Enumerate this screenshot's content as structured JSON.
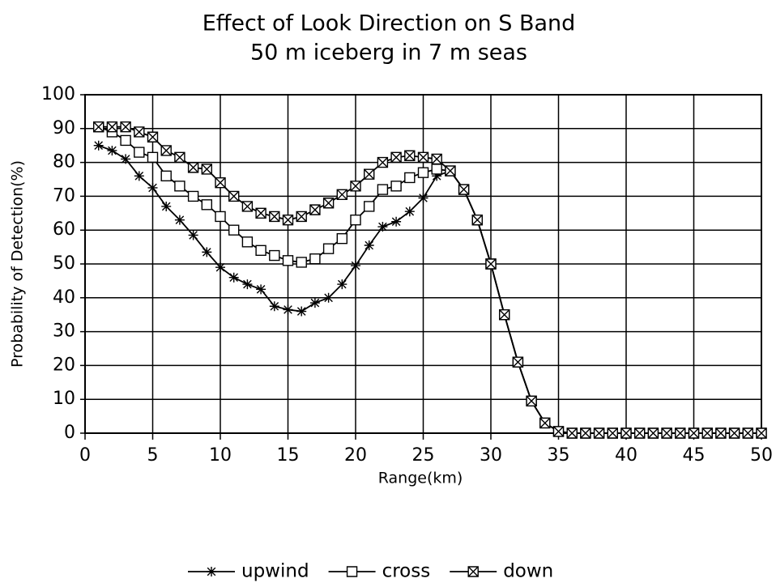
{
  "chart_data": {
    "type": "line",
    "title": "Effect of Look Direction on S Band",
    "subtitle": "50 m iceberg in 7 m seas",
    "x_label": "Range(km)",
    "y_label": "Probability of Detection(%)",
    "x": [
      1,
      2,
      3,
      4,
      5,
      6,
      7,
      8,
      9,
      10,
      11,
      12,
      13,
      14,
      15,
      16,
      17,
      18,
      19,
      20,
      21,
      22,
      23,
      24,
      25,
      26,
      27,
      28,
      29,
      30,
      31,
      32,
      33,
      34,
      35,
      36,
      37,
      38,
      39,
      40,
      41,
      42,
      43,
      44,
      45,
      46,
      47,
      48,
      49,
      50
    ],
    "series": [
      {
        "name": "upwind",
        "color": "#000",
        "marker": "asterisk",
        "values": [
          85,
          83.5,
          81,
          76,
          72.5,
          67,
          63,
          58.5,
          53.5,
          49,
          46,
          44,
          42.5,
          37.5,
          36.5,
          36,
          38.5,
          40,
          44,
          49.5,
          55.5,
          61,
          62.5,
          65.5,
          69.5,
          76,
          77.5,
          72,
          63,
          50,
          35,
          21,
          9.5,
          3,
          0.5,
          0,
          0,
          0,
          0,
          0,
          0,
          0,
          0,
          0,
          0,
          0,
          0,
          0,
          0,
          0
        ]
      },
      {
        "name": "cross",
        "color": "#000",
        "marker": "square",
        "values": [
          90.5,
          89,
          86.5,
          83,
          81.5,
          76,
          73,
          70,
          67.5,
          64,
          60,
          56.5,
          54,
          52.5,
          51,
          50.5,
          51.5,
          54.5,
          57.5,
          63,
          67,
          72,
          73,
          75.5,
          77,
          78,
          77.5,
          72,
          63,
          50,
          35,
          21,
          9.5,
          3,
          0.5,
          0,
          0,
          0,
          0,
          0,
          0,
          0,
          0,
          0,
          0,
          0,
          0,
          0,
          0,
          0
        ]
      },
      {
        "name": "down",
        "color": "#000",
        "marker": "hourglass",
        "values": [
          90.5,
          90.5,
          90.5,
          89,
          87.5,
          83.5,
          81.5,
          78.5,
          78,
          74,
          70,
          67,
          65,
          64,
          63,
          64,
          66,
          68,
          70.5,
          73,
          76.5,
          80,
          81.5,
          82,
          81.5,
          81,
          77.5,
          72,
          63,
          50,
          35,
          21,
          9.5,
          3,
          0.5,
          0,
          0,
          0,
          0,
          0,
          0,
          0,
          0,
          0,
          0,
          0,
          0,
          0,
          0,
          0
        ]
      }
    ],
    "xlim": [
      0,
      50
    ],
    "xticks": [
      0,
      5,
      10,
      15,
      20,
      25,
      30,
      35,
      40,
      45,
      50
    ],
    "ylim": [
      0,
      100
    ],
    "yticks": [
      0,
      10,
      20,
      30,
      40,
      50,
      60,
      70,
      80,
      90,
      100
    ],
    "grid": true,
    "legend": "bottom"
  }
}
